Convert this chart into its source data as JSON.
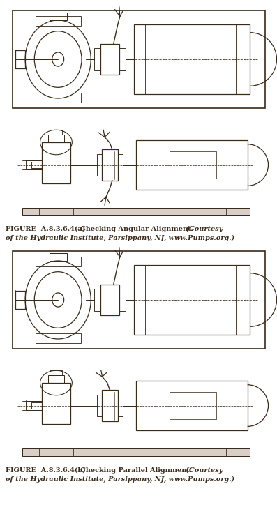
{
  "bg_color": "#ffffff",
  "line_color": "#3a2a1a",
  "fig_width": 3.97,
  "fig_height": 7.27,
  "caption_a_bold": "FIGURE  A.8.3.6.4(a)",
  "caption_a_main": "   Checking Angular Alignment.",
  "caption_a_italic": " (Courtesy",
  "caption_a_line2": "of the Hydraulic Institute, Parsippany, NJ, www.Pumps.org.)",
  "caption_b_bold": "FIGURE  A.8.3.6.4(b)",
  "caption_b_main": "   Checking Parallel Alignment.",
  "caption_b_italic": " (Courtesy",
  "caption_b_line2": "of the Hydraulic Institute, Parsippany, NJ, www.Pumps.org.)"
}
